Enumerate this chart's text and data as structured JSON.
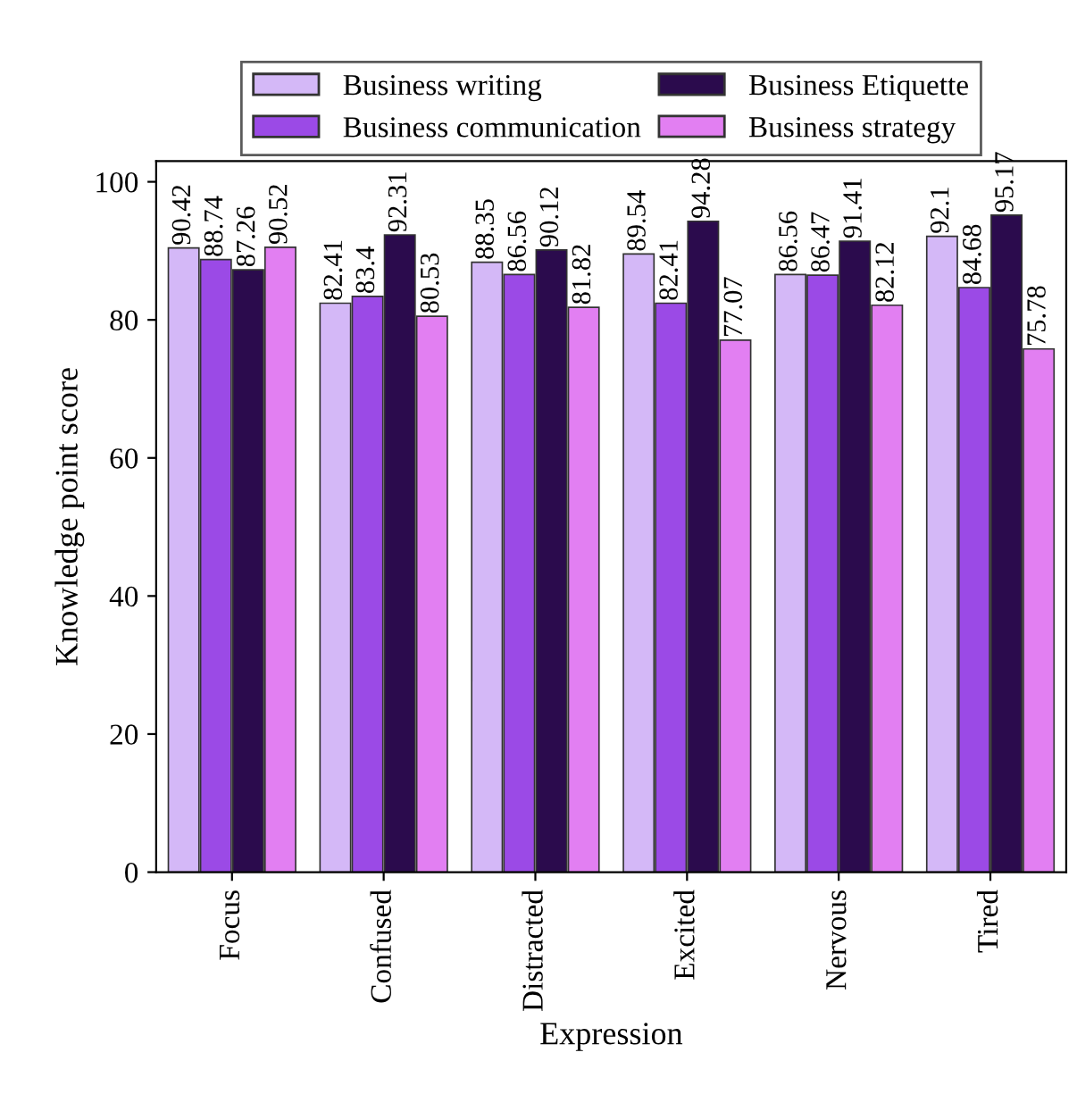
{
  "chart_data": {
    "type": "bar",
    "xlabel": "Expression",
    "ylabel": "Knowledge point score",
    "categories": [
      "Focus",
      "Confused",
      "Distracted",
      "Excited",
      "Nervous",
      "Tired"
    ],
    "series": [
      {
        "name": "Business writing",
        "color": "#d4b8f7",
        "values": [
          90.42,
          82.41,
          88.35,
          89.54,
          86.56,
          92.1
        ]
      },
      {
        "name": "Business communication",
        "color": "#9b4ae6",
        "values": [
          88.74,
          83.4,
          86.56,
          82.41,
          86.47,
          84.68
        ]
      },
      {
        "name": "Business Etiquette",
        "color": "#2b0b4d",
        "values": [
          87.26,
          92.31,
          90.12,
          94.28,
          91.41,
          95.17
        ]
      },
      {
        "name": "Business strategy",
        "color": "#e27ff2",
        "values": [
          90.52,
          80.53,
          81.82,
          77.07,
          82.12,
          75.78
        ]
      }
    ],
    "ylim": [
      0,
      103
    ],
    "yticks": [
      0,
      20,
      40,
      60,
      80,
      100
    ],
    "grid": false,
    "legend": "top",
    "data_labels": true
  }
}
